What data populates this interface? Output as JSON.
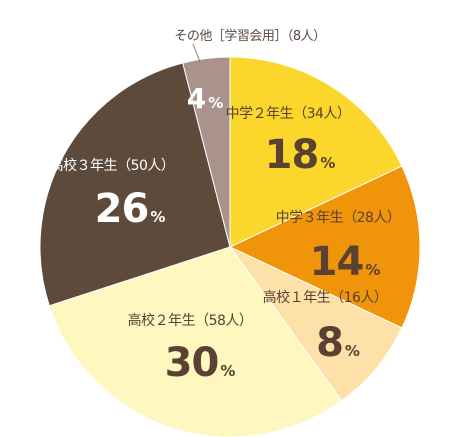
{
  "chart_data": {
    "type": "pie",
    "slices": [
      {
        "label": "中学２年生（34人）",
        "value": 18,
        "color": "#fbd62b",
        "text_color": "#5a4132"
      },
      {
        "label": "中学３年生（28人）",
        "value": 14,
        "color": "#f0950a",
        "text_color": "#5a4132"
      },
      {
        "label": "高校１年生（16人）",
        "value": 8,
        "color": "#fde1a9",
        "text_color": "#5a4132"
      },
      {
        "label": "高校２年生（58人）",
        "value": 30,
        "color": "#fef7c0",
        "text_color": "#5a4132"
      },
      {
        "label": "高校３年生（50人）",
        "value": 26,
        "color": "#5d4a3b",
        "text_color": "#ffffff"
      },
      {
        "label": "その他［学習会用］（8人）",
        "value": 4,
        "color": "#a9938a",
        "text_color": "#ffffff"
      }
    ],
    "percent_suffix": "%",
    "start_angle_deg": 0,
    "direction": "clockwise"
  }
}
